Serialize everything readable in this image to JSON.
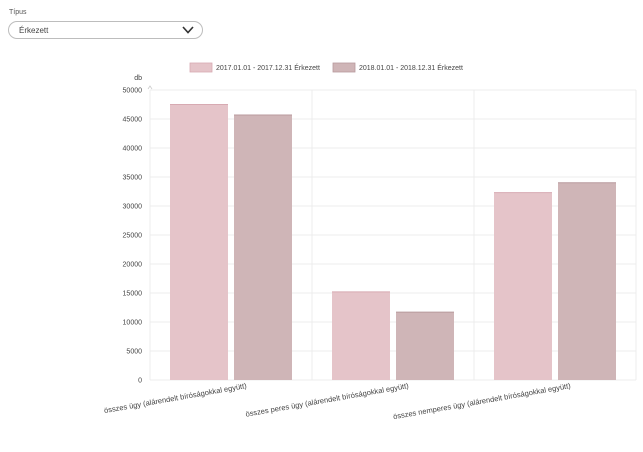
{
  "filter": {
    "label": "Típus",
    "selected": "Érkezett",
    "icon": "chevron-down-icon"
  },
  "chart_data": {
    "type": "bar",
    "ylabel": "db",
    "ylim": [
      0,
      50000
    ],
    "yticks": [
      0,
      5000,
      10000,
      15000,
      20000,
      25000,
      30000,
      35000,
      40000,
      45000,
      50000
    ],
    "categories": [
      "összes ügy (alárendelt bíróságokkal együtt)",
      "összes peres ügy (alárendelt bíróságokkal együtt)",
      "összes nemperes ügy (alárendelt bíróságokkal együtt)"
    ],
    "series": [
      {
        "name": "2017.01.01 - 2017.12.31 Érkezett",
        "color": "#e5c4c9",
        "values": [
          47500,
          15200,
          32300
        ]
      },
      {
        "name": "2018.01.01 - 2018.12.31 Érkezett",
        "color": "#cfb5b7",
        "values": [
          45700,
          11700,
          34000
        ]
      }
    ],
    "grid": true,
    "legend": "top-center"
  }
}
